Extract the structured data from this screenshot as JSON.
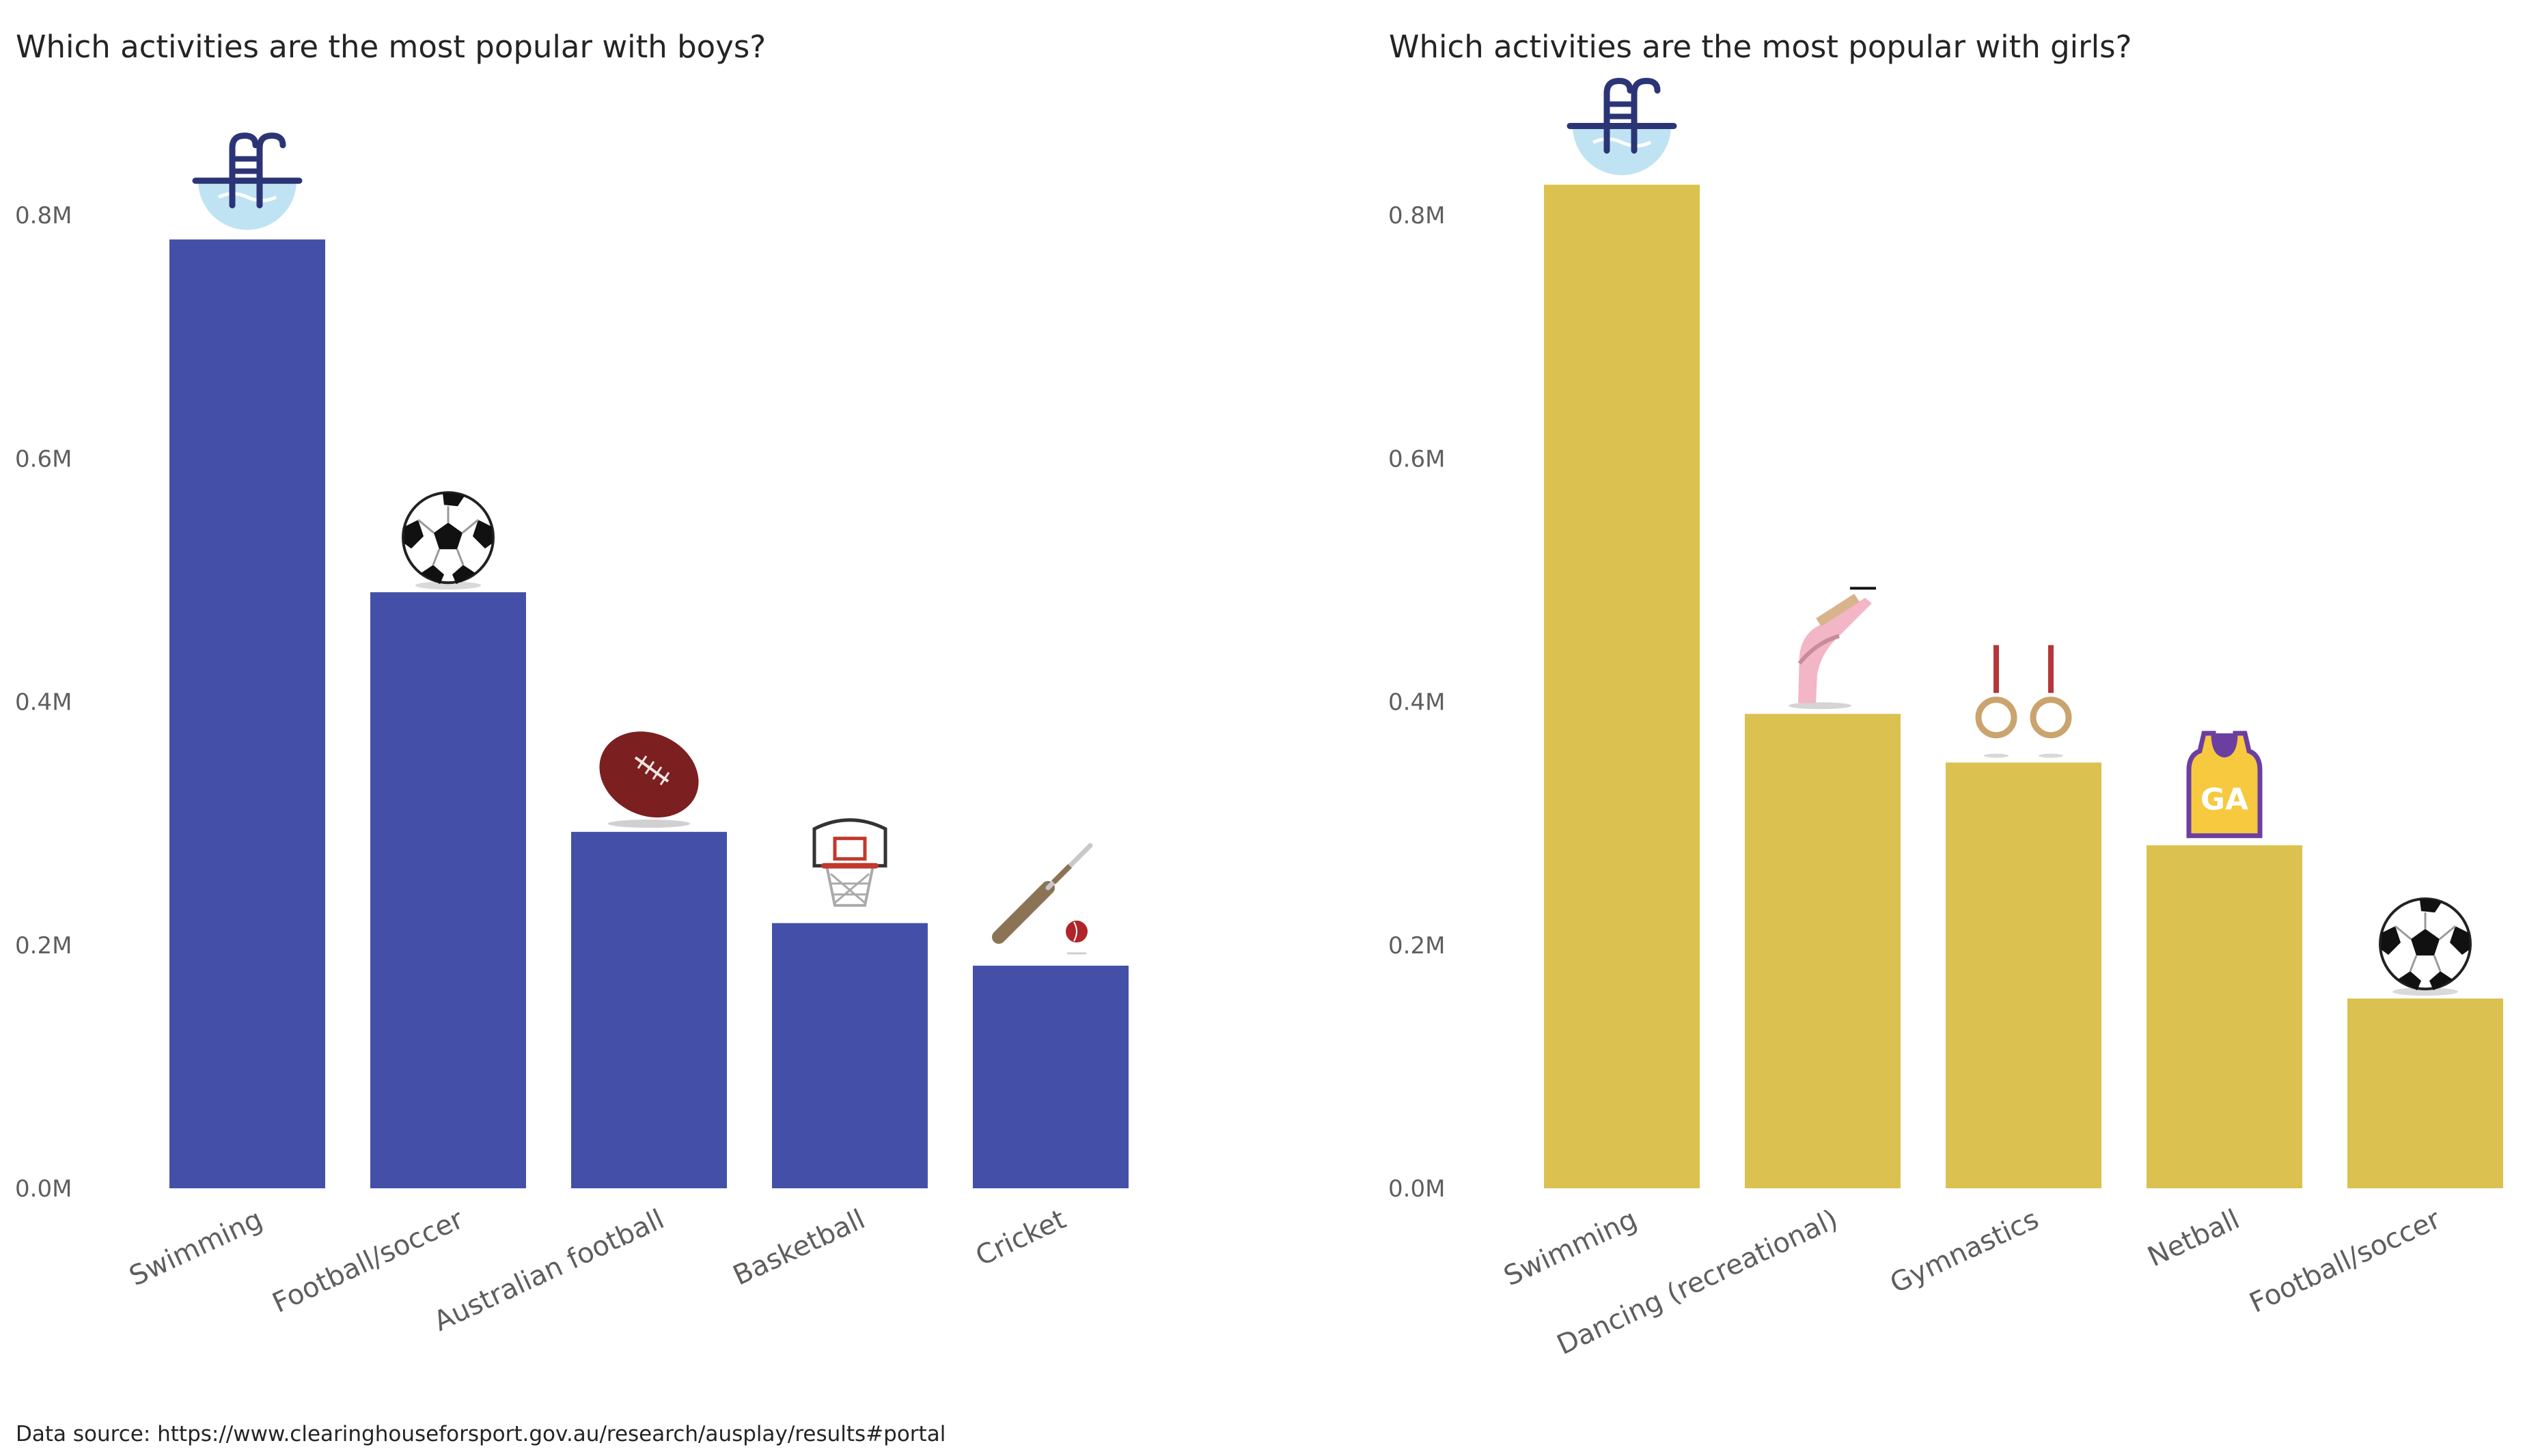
{
  "source_note": "Data source: https://www.clearinghouseforsport.gov.au/research/ausplay/results#portal",
  "chart_data": [
    {
      "type": "bar",
      "title": "Which activities are the most popular with boys?",
      "xlabel": "",
      "ylabel": "",
      "categories": [
        "Swimming",
        "Football/soccer",
        "Australian football",
        "Basketball",
        "Cricket"
      ],
      "values": [
        780000,
        490000,
        293000,
        218000,
        183000
      ],
      "icons": [
        "swimming-pool-icon",
        "soccer-ball-icon",
        "australian-football-icon",
        "basketball-hoop-icon",
        "cricket-bat-ball-icon"
      ],
      "ylim": [
        0,
        800000
      ],
      "yticks": [
        0,
        200000,
        400000,
        600000,
        800000
      ],
      "ytick_labels": [
        "0.0M",
        "0.2M",
        "0.4M",
        "0.6M",
        "0.8M"
      ],
      "grid": false,
      "color": "#4450A8"
    },
    {
      "type": "bar",
      "title": "Which activities are the most popular with girls?",
      "xlabel": "",
      "ylabel": "",
      "categories": [
        "Swimming",
        "Dancing (recreational)",
        "Gymnastics",
        "Netball",
        "Football/soccer"
      ],
      "values": [
        825000,
        390000,
        350000,
        282000,
        156000
      ],
      "icons": [
        "swimming-pool-icon",
        "ballet-shoe-icon",
        "gymnastics-rings-icon",
        "netball-bib-icon",
        "soccer-ball-icon"
      ],
      "ylim": [
        0,
        800000
      ],
      "yticks": [
        0,
        200000,
        400000,
        600000,
        800000
      ],
      "ytick_labels": [
        "0.0M",
        "0.2M",
        "0.4M",
        "0.6M",
        "0.8M"
      ],
      "grid": false,
      "color": "#DBC14F",
      "netball_bib_text": "GA"
    }
  ]
}
